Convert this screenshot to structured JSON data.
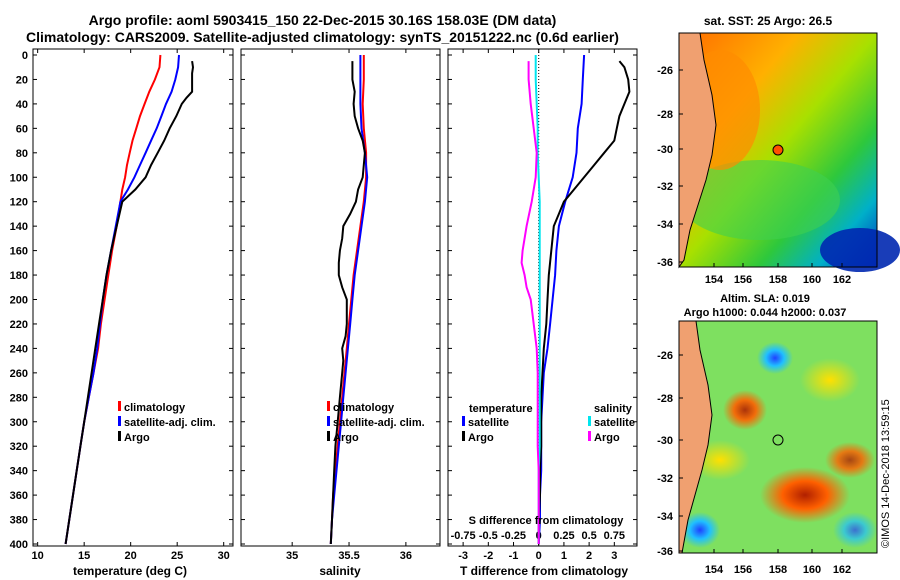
{
  "header": {
    "title_line1": "Argo profile: aoml 5903415_150 22-Dec-2015 30.16S 158.03E (DM data)",
    "title_line2": "Climatology: CARS2009. Satellite-adjusted climatology: synTS_20151222.nc (0.6d earlier)"
  },
  "colors": {
    "climatology": "#ff0000",
    "satellite": "#0000ff",
    "argo": "#000000",
    "sat_salinity": "#00e5ee",
    "argo_salinity": "#ff00ff"
  },
  "depth_axis": {
    "min": 0,
    "max": 400,
    "ticks": [
      0,
      20,
      40,
      60,
      80,
      100,
      120,
      140,
      160,
      180,
      200,
      220,
      240,
      260,
      280,
      300,
      320,
      340,
      360,
      380,
      400
    ]
  },
  "chart_data": [
    {
      "type": "line",
      "id": "temperature",
      "xlabel": "temperature (deg C)",
      "xlim": [
        9.5,
        31
      ],
      "xticks": [
        10,
        15,
        20,
        25,
        30
      ],
      "ylim": [
        0,
        400
      ],
      "legend": {
        "placement": "lower-right",
        "entries": [
          "climatology",
          "satellite-adj. clim.",
          "Argo"
        ]
      },
      "series": [
        {
          "name": "climatology",
          "color": "#ff0000",
          "depth": [
            0,
            10,
            20,
            30,
            40,
            50,
            60,
            70,
            80,
            90,
            100,
            110,
            120,
            140,
            160,
            180,
            200,
            220,
            240,
            260,
            280,
            300,
            320,
            340,
            360,
            380,
            400
          ],
          "values": [
            23.2,
            23.1,
            22.6,
            22.0,
            21.5,
            21.0,
            20.6,
            20.2,
            19.9,
            19.6,
            19.4,
            19.1,
            18.9,
            18.5,
            18.0,
            17.6,
            17.2,
            16.8,
            16.5,
            16.0,
            15.5,
            15.0,
            14.6,
            14.2,
            13.8,
            13.4,
            13.0
          ]
        },
        {
          "name": "satellite-adj. clim.",
          "color": "#0000ff",
          "depth": [
            0,
            10,
            20,
            30,
            40,
            50,
            60,
            70,
            80,
            90,
            100,
            110,
            120,
            140,
            160,
            180,
            200,
            220,
            240,
            260,
            280,
            300,
            320,
            340,
            360,
            380,
            400
          ],
          "values": [
            25.2,
            25.1,
            24.8,
            24.4,
            23.8,
            23.3,
            22.8,
            22.2,
            21.6,
            21.0,
            20.4,
            19.7,
            18.9,
            18.4,
            17.9,
            17.4,
            17.0,
            16.7,
            16.4,
            16.0,
            15.5,
            15.0,
            14.6,
            14.2,
            13.8,
            13.4,
            13.0
          ]
        },
        {
          "name": "Argo",
          "color": "#000000",
          "depth": [
            5,
            10,
            15,
            20,
            30,
            35,
            40,
            50,
            60,
            70,
            80,
            90,
            100,
            110,
            120,
            140,
            160,
            180,
            200,
            220,
            240,
            260,
            280,
            300,
            320,
            340,
            360,
            380,
            400
          ],
          "values": [
            26.6,
            26.7,
            26.6,
            26.6,
            26.6,
            26.0,
            25.5,
            24.9,
            24.2,
            23.6,
            22.9,
            22.2,
            21.6,
            20.5,
            19.1,
            18.5,
            17.9,
            17.4,
            17.0,
            16.6,
            16.2,
            15.8,
            15.4,
            15.0,
            14.6,
            14.2,
            13.8,
            13.4,
            13.0
          ]
        }
      ]
    },
    {
      "type": "line",
      "id": "salinity",
      "xlabel": "salinity",
      "xlim": [
        34.55,
        36.3
      ],
      "xticks": [
        35,
        35.5,
        36
      ],
      "xticklabels": [
        "35",
        "35.5",
        "36"
      ],
      "ylim": [
        0,
        400
      ],
      "legend": {
        "placement": "lower-right",
        "entries": [
          "climatology",
          "satellite-adj. clim.",
          "Argo"
        ]
      },
      "series": [
        {
          "name": "climatology",
          "color": "#ff0000",
          "depth": [
            0,
            20,
            40,
            60,
            80,
            100,
            120,
            140,
            160,
            180,
            200,
            220,
            240,
            260,
            280,
            300,
            320,
            340,
            360,
            380,
            400
          ],
          "values": [
            35.63,
            35.63,
            35.62,
            35.63,
            35.65,
            35.65,
            35.63,
            35.6,
            35.57,
            35.54,
            35.52,
            35.5,
            35.48,
            35.46,
            35.44,
            35.42,
            35.4,
            35.38,
            35.36,
            35.35,
            35.34
          ]
        },
        {
          "name": "satellite-adj. clim.",
          "color": "#0000ff",
          "depth": [
            0,
            20,
            40,
            60,
            80,
            100,
            120,
            140,
            160,
            180,
            200,
            220,
            240,
            260,
            280,
            300,
            320,
            340,
            360,
            380,
            400
          ],
          "values": [
            35.6,
            35.6,
            35.6,
            35.61,
            35.64,
            35.66,
            35.64,
            35.61,
            35.58,
            35.55,
            35.53,
            35.51,
            35.49,
            35.47,
            35.45,
            35.43,
            35.41,
            35.39,
            35.37,
            35.35,
            35.34
          ]
        },
        {
          "name": "Argo",
          "color": "#000000",
          "depth": [
            5,
            10,
            20,
            30,
            40,
            50,
            60,
            70,
            80,
            90,
            100,
            110,
            120,
            130,
            140,
            150,
            160,
            170,
            180,
            190,
            200,
            210,
            220,
            230,
            240,
            250,
            260,
            280,
            300,
            320,
            340,
            360,
            380,
            400
          ],
          "values": [
            35.53,
            35.53,
            35.53,
            35.55,
            35.54,
            35.55,
            35.58,
            35.62,
            35.64,
            35.63,
            35.62,
            35.58,
            35.56,
            35.51,
            35.45,
            35.44,
            35.42,
            35.41,
            35.41,
            35.44,
            35.48,
            35.48,
            35.48,
            35.47,
            35.44,
            35.45,
            35.44,
            35.42,
            35.4,
            35.38,
            35.37,
            35.36,
            35.35,
            35.34
          ]
        }
      ]
    },
    {
      "type": "line",
      "id": "difference",
      "xlabel": "T difference from climatology",
      "xlim": [
        -3.6,
        3.9
      ],
      "xticks": [
        -3,
        -2,
        -1,
        0,
        1,
        2,
        3
      ],
      "secondary_axis_label": "S difference from climatology",
      "secondary_ticklabels": [
        "-0.75",
        "-0.5",
        "-0.25",
        "0",
        "0.25",
        "0.5",
        "0.75"
      ],
      "ylim": [
        0,
        400
      ],
      "legend": {
        "placement": "lower",
        "temperature_heading": "temperature",
        "salinity_heading": "salinity",
        "entries": [
          "satellite",
          "Argo",
          "satellite",
          "Argo"
        ]
      },
      "series": [
        {
          "name": "T satellite",
          "color": "#0000ff",
          "depth": [
            0,
            20,
            40,
            60,
            80,
            100,
            120,
            140,
            160,
            180,
            200,
            220,
            240,
            260,
            280,
            300,
            320,
            340,
            360,
            380,
            400
          ],
          "values": [
            1.8,
            1.75,
            1.7,
            1.55,
            1.5,
            1.35,
            1.05,
            0.8,
            0.7,
            0.65,
            0.55,
            0.45,
            0.35,
            0.2,
            0.15,
            0.1,
            0.1,
            0.1,
            0.05,
            0.05,
            0.0
          ]
        },
        {
          "name": "T Argo",
          "color": "#000000",
          "depth": [
            5,
            10,
            20,
            30,
            40,
            50,
            60,
            70,
            80,
            90,
            100,
            110,
            120,
            130,
            140,
            160,
            180,
            200,
            220,
            240,
            260,
            280,
            300,
            320,
            340,
            360,
            380,
            400
          ],
          "values": [
            3.2,
            3.4,
            3.55,
            3.6,
            3.4,
            3.2,
            3.1,
            3.0,
            2.6,
            2.2,
            1.8,
            1.4,
            1.0,
            0.8,
            0.6,
            0.5,
            0.4,
            0.35,
            0.3,
            0.2,
            0.15,
            0.1,
            0.1,
            0.1,
            0.05,
            0.05,
            0.0,
            0.0
          ]
        },
        {
          "name": "S satellite",
          "color": "#00e5ee",
          "depth": [
            0,
            20,
            40,
            60,
            80,
            100,
            120,
            140,
            160,
            180,
            200,
            220,
            240,
            260,
            280,
            300,
            320,
            340,
            360,
            380,
            400
          ],
          "values": [
            -0.03,
            -0.03,
            -0.02,
            -0.01,
            -0.01,
            0.0,
            0.01,
            0.01,
            0.01,
            0.01,
            0.01,
            0.01,
            0.01,
            0.01,
            0.01,
            0.01,
            0.01,
            0.0,
            0.0,
            0.0,
            0.0
          ]
        },
        {
          "name": "S Argo",
          "color": "#ff00ff",
          "depth": [
            5,
            20,
            40,
            60,
            80,
            100,
            120,
            140,
            160,
            170,
            180,
            190,
            200,
            220,
            240,
            260,
            280,
            300,
            320,
            340,
            360,
            380,
            400
          ],
          "values": [
            -0.1,
            -0.1,
            -0.08,
            -0.05,
            -0.02,
            -0.03,
            -0.07,
            -0.12,
            -0.16,
            -0.17,
            -0.14,
            -0.12,
            -0.08,
            -0.05,
            -0.02,
            -0.01,
            -0.01,
            -0.01,
            -0.01,
            0.0,
            0.0,
            0.0,
            0.0
          ]
        }
      ]
    }
  ],
  "maps": {
    "sst_title": "sat. SST: 25 Argo: 26.5",
    "sla_title1": "Altim. SLA: 0.019",
    "sla_title2": "Argo h1000: 0.044 h2000: 0.037",
    "lon_ticks": [
      "154",
      "156",
      "158",
      "160",
      "162"
    ],
    "lat_ticks": [
      "-26",
      "-28",
      "-30",
      "-32",
      "-34",
      "-36"
    ]
  },
  "footer": {
    "stamp": "©IMOS 14-Dec-2018 13:59:15"
  }
}
